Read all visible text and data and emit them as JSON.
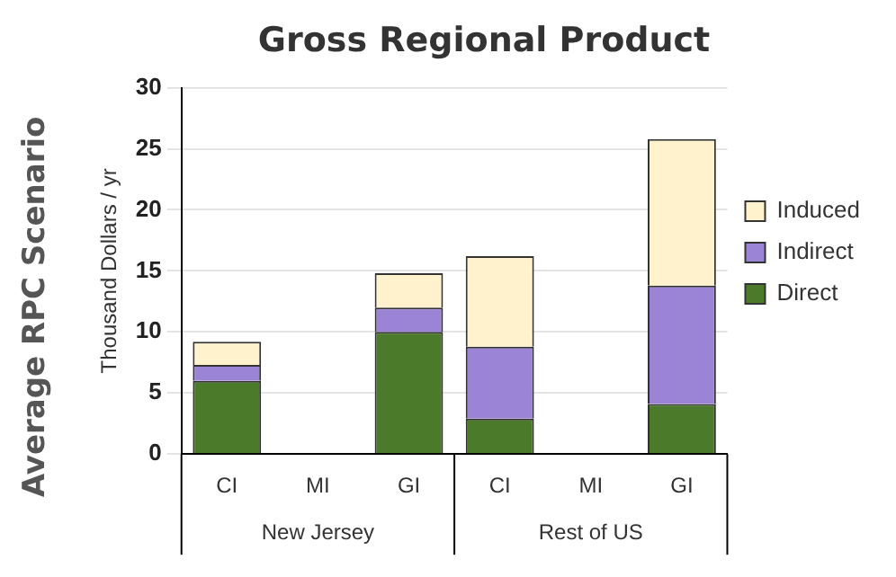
{
  "chart_data": {
    "type": "bar",
    "title": "Gross Regional Product",
    "ylabel": "Thousand Dollars / yr",
    "categories": [
      "CI",
      "MI",
      "GI",
      "CI",
      "MI",
      "GI"
    ],
    "stacked": true,
    "series": [
      {
        "name": "Direct",
        "color": "#4a7a2a",
        "values": [
          6,
          null,
          10,
          2.9,
          null,
          4.1
        ]
      },
      {
        "name": "Indirect",
        "color": "#9b84d6",
        "values": [
          1.3,
          null,
          2,
          5.9,
          null,
          9.7
        ]
      },
      {
        "name": "Induced",
        "color": "#fff2cc",
        "values": [
          1.9,
          null,
          2.8,
          7.4,
          null,
          12
        ]
      }
    ],
    "ylim": [
      0,
      30
    ],
    "yticks": [
      0,
      5,
      10,
      15,
      20,
      25,
      30
    ],
    "grid": "y",
    "legend": "right",
    "annotations": [
      "New Jersey",
      "Rest of US",
      "Average RPC Scenario"
    ]
  }
}
